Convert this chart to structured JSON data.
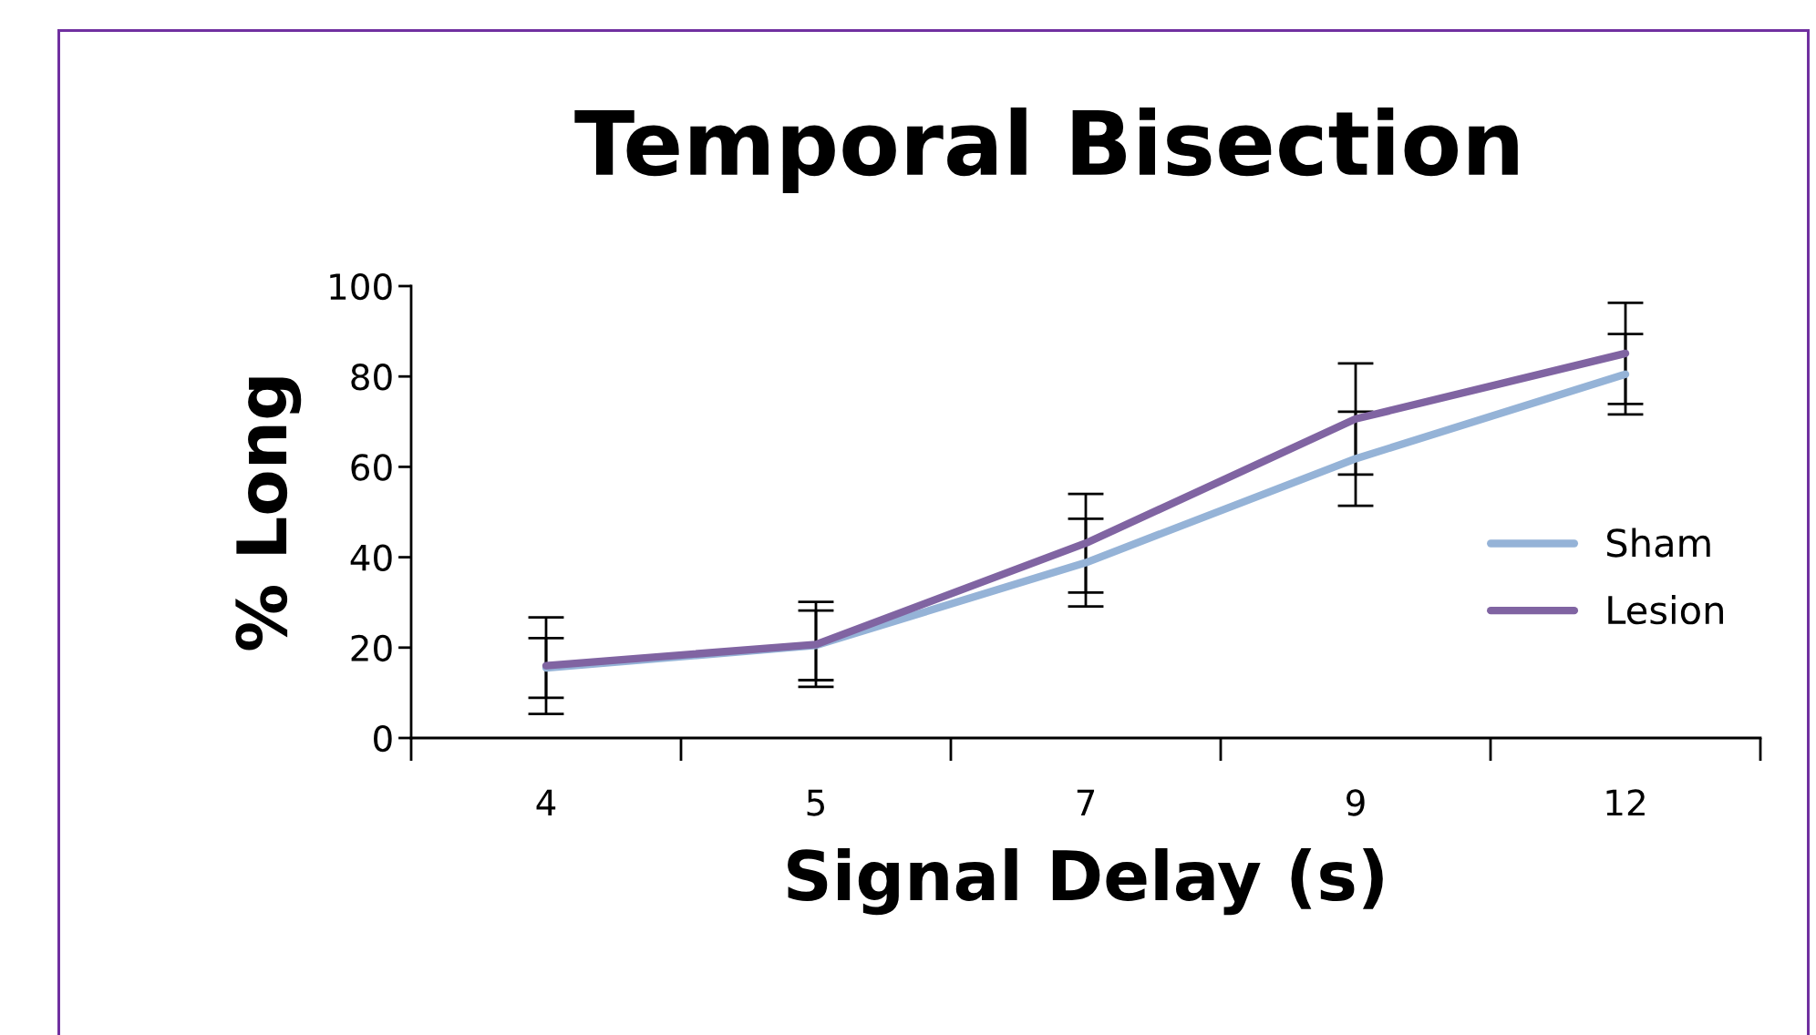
{
  "chart_data": {
    "type": "line",
    "title": "Temporal Bisection",
    "xlabel": "Signal Delay (s)",
    "ylabel": "% Long",
    "categories": [
      "4",
      "5",
      "7",
      "9",
      "12"
    ],
    "series": [
      {
        "name": "Sham",
        "color": "#95b3d7",
        "values": [
          15.5,
          20.5,
          38.8,
          61.8,
          80.5
        ],
        "errors": [
          6.6,
          7.7,
          9.7,
          10.4,
          8.9
        ]
      },
      {
        "name": "Lesion",
        "color": "#8064a2",
        "values": [
          16.0,
          20.7,
          43.1,
          70.6,
          85.1
        ],
        "errors": [
          10.7,
          9.4,
          10.9,
          12.3,
          11.2
        ]
      }
    ],
    "ylim": [
      0,
      100
    ],
    "yticks": [
      0,
      20,
      40,
      60,
      80,
      100
    ],
    "grid": false,
    "legend": "right",
    "marker": "none",
    "line_style": "solid"
  }
}
